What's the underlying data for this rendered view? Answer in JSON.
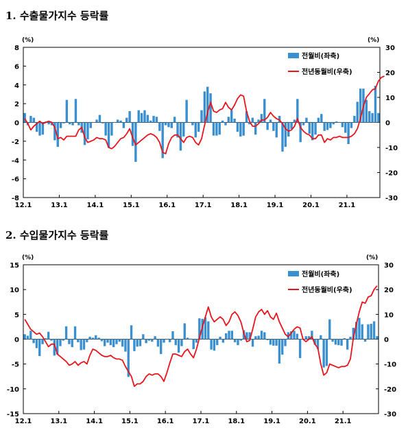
{
  "sections": [
    {
      "title": "1. 수출물가지수 등락률"
    },
    {
      "title": "2. 수입물가지수 등락률"
    }
  ],
  "chart_data": [
    {
      "type": "bar",
      "y_unit_left": "(%)",
      "y_unit_right": "(%)",
      "left_ylim": [
        -8,
        8
      ],
      "left_ticks": [
        8,
        6,
        4,
        2,
        0,
        -2,
        -4,
        -6,
        -8
      ],
      "right_ylim": [
        -30,
        30
      ],
      "right_ticks": [
        30,
        20,
        10,
        0,
        -10,
        -20,
        -30
      ],
      "x_tick_labels": [
        "12.1",
        "13.1",
        "14.1",
        "15.1",
        "16.1",
        "17.1",
        "18.1",
        "19.1",
        "20.1",
        "21.1"
      ],
      "legend": [
        "전월비(좌축)",
        "전년동월비(우축)"
      ],
      "legend_position": "top-right",
      "series": [
        {
          "name": "전월비(좌축)",
          "type": "bar",
          "axis": "left",
          "color": "#3a8fd0",
          "values": [
            1.0,
            -0.3,
            0.7,
            0.5,
            -1.0,
            -1.4,
            -1.3,
            0.1,
            -0.2,
            -0.3,
            -1.9,
            -2.6,
            -0.6,
            -0.1,
            2.4,
            -0.2,
            -0.3,
            2.5,
            -0.3,
            -1.1,
            -2.4,
            -1.8,
            -0.6,
            0.0,
            0.3,
            0.8,
            -0.1,
            -1.4,
            -2.7,
            -1.4,
            0.0,
            0.3,
            0.2,
            -0.6,
            0.5,
            1.2,
            -2.5,
            -4.2,
            1.3,
            1.0,
            1.3,
            0.8,
            0.2,
            0.7,
            0.6,
            -0.9,
            -3.8,
            -0.3,
            -0.5,
            -0.6,
            0.6,
            -1.6,
            -3.0,
            -1.5,
            2.4,
            0.0,
            -0.3,
            -1.6,
            -1.0,
            1.3,
            3.3,
            3.8,
            3.1,
            -1.4,
            -1.4,
            -1.3,
            0.2,
            -0.3,
            0.6,
            1.3,
            0.4,
            -1.0,
            -1.5,
            -1.4,
            1.2,
            -0.2,
            0.5,
            -1.3,
            0.3,
            0.9,
            2.5,
            -0.8,
            0.3,
            -0.9,
            -1.6,
            0.7,
            -3.1,
            -2.6,
            -1.5,
            -0.7,
            0.3,
            2.5,
            -2.1,
            -0.3,
            0.5,
            -1.2,
            -1.9,
            -1.3,
            0.5,
            0.9,
            -0.9,
            -0.8,
            -0.6,
            -0.2,
            0.1,
            0.0,
            -0.5,
            -1.1,
            -2.3,
            -0.6,
            0.7,
            2.2,
            3.6,
            3.6,
            2.4,
            1.2,
            1.0,
            3.9,
            1.0
          ]
        },
        {
          "name": "전년동월비(우축)",
          "type": "line",
          "axis": "right",
          "color": "#e8141c",
          "values": [
            1.5,
            -0.5,
            -3.0,
            -1.5,
            -0.5,
            0.5,
            -0.5,
            0.0,
            0.5,
            0.0,
            -2.0,
            -6.5,
            -6.0,
            -7.0,
            -5.5,
            -5.5,
            -5.5,
            -5.5,
            -3.0,
            -2.0,
            -6.0,
            -8.0,
            -7.5,
            -7.0,
            -6.0,
            -6.5,
            -6.5,
            -7.0,
            -10.0,
            -10.5,
            -9.5,
            -8.0,
            -6.5,
            -6.0,
            -4.5,
            -2.5,
            -6.0,
            -9.0,
            -8.0,
            -7.0,
            -6.0,
            -5.0,
            -4.5,
            -5.0,
            -6.0,
            -8.0,
            -12.0,
            -12.5,
            -8.5,
            -6.0,
            -5.0,
            -5.0,
            -6.5,
            -8.0,
            -6.0,
            -5.5,
            -6.0,
            -8.0,
            -9.0,
            -6.5,
            -1.0,
            4.0,
            8.0,
            4.5,
            4.0,
            5.0,
            5.5,
            8.0,
            6.0,
            5.0,
            7.0,
            9.5,
            11.0,
            10.5,
            4.5,
            0.5,
            -1.5,
            -1.5,
            -0.5,
            1.0,
            1.0,
            2.0,
            4.0,
            2.5,
            1.5,
            1.0,
            -0.5,
            -2.5,
            -3.5,
            -3.0,
            -1.5,
            1.5,
            -2.0,
            -3.5,
            -4.5,
            -5.0,
            -6.5,
            -6.5,
            -5.0,
            -5.0,
            -8.0,
            -6.5,
            -7.0,
            -6.0,
            -6.0,
            -5.5,
            -6.0,
            -6.0,
            -6.0,
            -5.5,
            -4.5,
            -2.5,
            1.5,
            6.5,
            10.0,
            11.5,
            13.0,
            13.5,
            16.5,
            18.0,
            18.5
          ]
        }
      ]
    },
    {
      "type": "bar",
      "y_unit_left": "(%)",
      "y_unit_right": "(%)",
      "left_ylim": [
        -15,
        15
      ],
      "left_ticks": [
        15,
        10,
        5,
        0,
        -5,
        -10,
        -15
      ],
      "right_ylim": [
        -30,
        30
      ],
      "right_ticks": [
        30,
        20,
        10,
        0,
        -10,
        -20,
        -30
      ],
      "x_tick_labels": [
        "12.1",
        "13.1",
        "14.1",
        "15.1",
        "16.1",
        "17.1",
        "18.1",
        "19.1",
        "20.1",
        "21.1"
      ],
      "legend": [
        "전월비(좌축)",
        "전년동월비(우축)"
      ],
      "legend_position": "top-right",
      "series": [
        {
          "name": "전월비(좌축)",
          "type": "bar",
          "axis": "left",
          "color": "#3a8fd0",
          "values": [
            1.0,
            0.7,
            1.7,
            -0.8,
            -1.8,
            -3.4,
            -1.0,
            0.2,
            1.5,
            -0.3,
            -3.3,
            -3.1,
            -1.4,
            -0.3,
            2.6,
            -1.0,
            -1.6,
            2.6,
            -0.6,
            -2.2,
            -2.1,
            -0.6,
            0.5,
            0.3,
            0.8,
            0.3,
            -0.4,
            -1.4,
            -0.7,
            -1.2,
            -1.6,
            -1.0,
            -0.5,
            -1.5,
            -2.5,
            -7.6,
            2.8,
            -2.4,
            -1.5,
            -1.4,
            1.0,
            -0.8,
            -0.3,
            -0.5,
            0.6,
            -1.5,
            -3.0,
            -0.7,
            -0.1,
            -0.6,
            1.6,
            -1.2,
            -2.7,
            -1.4,
            3.2,
            0.3,
            0.1,
            -2.0,
            -0.7,
            4.2,
            4.1,
            4.4,
            3.6,
            -2.1,
            -2.3,
            -1.2,
            0.5,
            -0.7,
            1.2,
            1.7,
            1.7,
            -0.6,
            -1.2,
            -0.3,
            1.8,
            1.4,
            1.4,
            -1.5,
            0.6,
            0.7,
            1.7,
            1.4,
            -0.2,
            -1.1,
            -1.3,
            -1.3,
            -4.9,
            -3.1,
            -1.4,
            1.4,
            1.6,
            1.7,
            1.1,
            -3.8,
            0.0,
            0.6,
            0.6,
            1.7,
            -1.1,
            -2.0,
            0.8,
            -5.7,
            -5.4,
            4.0,
            -0.5,
            -1.1,
            -1.2,
            -1.3,
            0.2,
            -2.1,
            0.5,
            2.3,
            3.5,
            4.3,
            3.0,
            -0.5,
            3.0,
            3.1,
            3.6,
            0.6
          ]
        },
        {
          "name": "전년동월비(우축)",
          "type": "line",
          "axis": "right",
          "color": "#e8141c",
          "values": [
            8.0,
            6.0,
            4.0,
            3.0,
            2.0,
            2.5,
            1.0,
            -1.0,
            -3.0,
            -2.0,
            -2.0,
            -6.0,
            -7.0,
            -8.0,
            -9.0,
            -10.5,
            -10.0,
            -9.0,
            -10.5,
            -9.5,
            -9.0,
            -10.0,
            -6.5,
            -4.0,
            -4.5,
            -5.5,
            -6.5,
            -7.0,
            -7.0,
            -6.5,
            -7.5,
            -8.0,
            -8.0,
            -8.5,
            -11.0,
            -13.0,
            -15.0,
            -19.0,
            -18.0,
            -18.0,
            -17.0,
            -15.0,
            -14.0,
            -14.5,
            -14.0,
            -14.0,
            -15.0,
            -17.0,
            -13.5,
            -9.5,
            -6.0,
            -6.0,
            -6.5,
            -7.0,
            -5.0,
            -4.0,
            -6.0,
            -7.5,
            -4.0,
            0.5,
            5.0,
            9.0,
            13.0,
            9.0,
            7.0,
            8.0,
            9.0,
            8.0,
            5.5,
            7.0,
            10.0,
            11.0,
            9.5,
            7.0,
            2.5,
            -1.0,
            -0.5,
            4.0,
            9.0,
            11.0,
            12.0,
            10.0,
            11.5,
            9.0,
            8.0,
            10.5,
            7.0,
            4.5,
            2.0,
            1.0,
            2.5,
            4.0,
            5.0,
            4.5,
            0.0,
            -1.0,
            0.0,
            1.0,
            -2.0,
            -3.5,
            -10.0,
            -14.5,
            -13.5,
            -10.0,
            -10.5,
            -11.0,
            -11.5,
            -11.0,
            -11.0,
            -10.5,
            -8.0,
            0.5,
            6.0,
            11.0,
            15.0,
            14.5,
            17.0,
            17.5,
            20.0,
            21.5
          ]
        }
      ]
    }
  ]
}
